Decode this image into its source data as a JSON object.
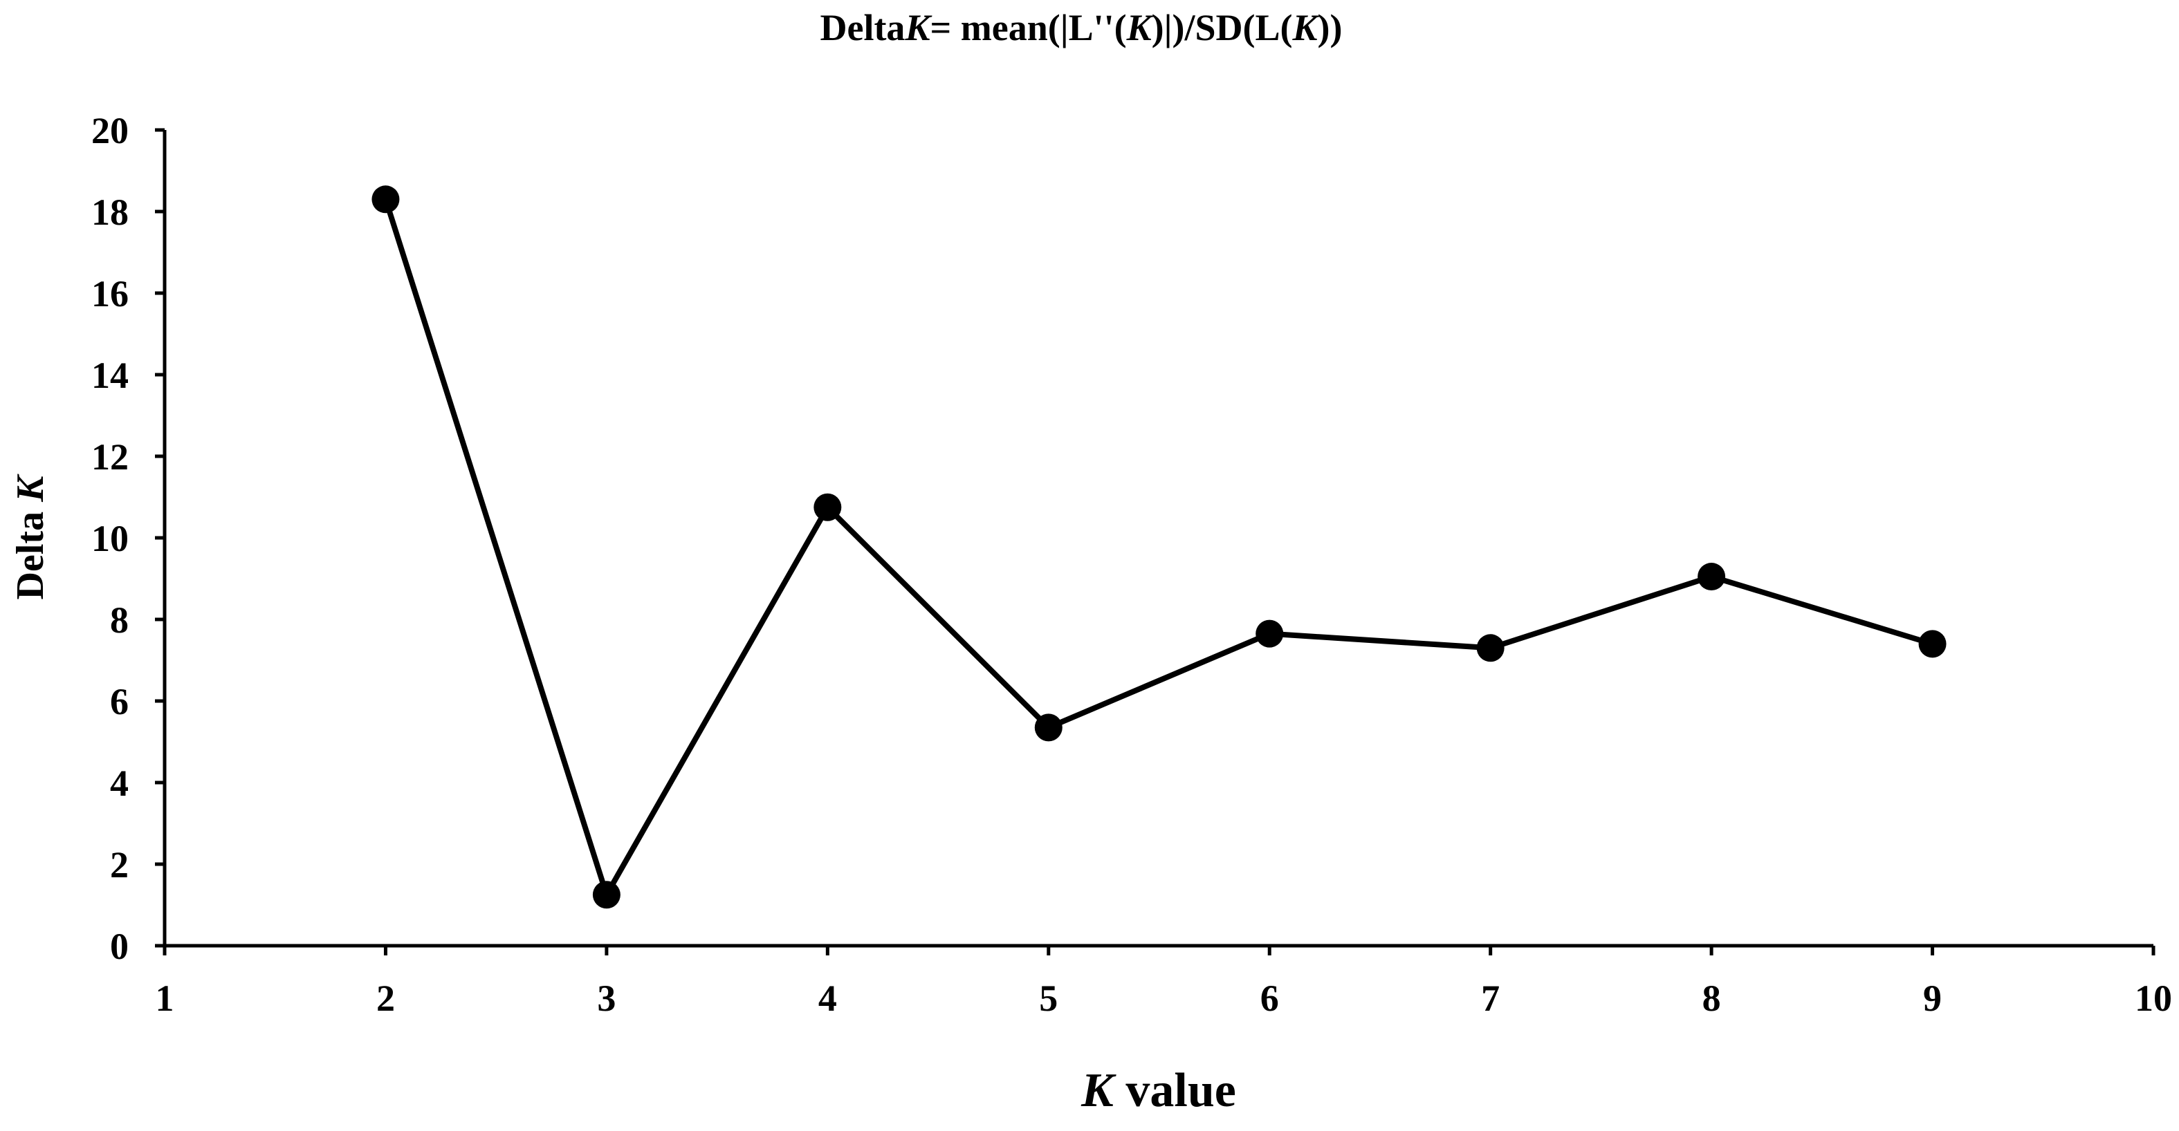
{
  "chart_data": {
    "type": "line",
    "title": {
      "parts": [
        {
          "text": "Delta",
          "italic": false
        },
        {
          "text": "K",
          "italic": true
        },
        {
          "text": "= mean(|L''(",
          "italic": false
        },
        {
          "text": "K",
          "italic": true
        },
        {
          "text": ")|)/SD(L(",
          "italic": false
        },
        {
          "text": "K",
          "italic": true
        },
        {
          "text": "))",
          "italic": false
        }
      ]
    },
    "xlabel": {
      "parts": [
        {
          "text": "K",
          "italic": true
        },
        {
          "text": " value",
          "italic": false
        }
      ]
    },
    "ylabel": {
      "parts": [
        {
          "text": "Delta ",
          "italic": false
        },
        {
          "text": "K",
          "italic": true
        }
      ]
    },
    "xlim": [
      1,
      10
    ],
    "ylim": [
      0,
      20
    ],
    "x_ticks": [
      "1",
      "2",
      "3",
      "4",
      "5",
      "6",
      "7",
      "8",
      "9",
      "10"
    ],
    "y_ticks": [
      "0",
      "2",
      "4",
      "6",
      "8",
      "10",
      "12",
      "14",
      "16",
      "18",
      "20"
    ],
    "grid": false,
    "legend": "none",
    "series": [
      {
        "x": [
          2,
          3,
          4,
          5,
          6,
          7,
          8,
          9
        ],
        "y": [
          18.3,
          1.25,
          10.75,
          5.35,
          7.65,
          7.3,
          9.05,
          7.4
        ],
        "color": "#000000",
        "marker": "circle"
      }
    ]
  }
}
